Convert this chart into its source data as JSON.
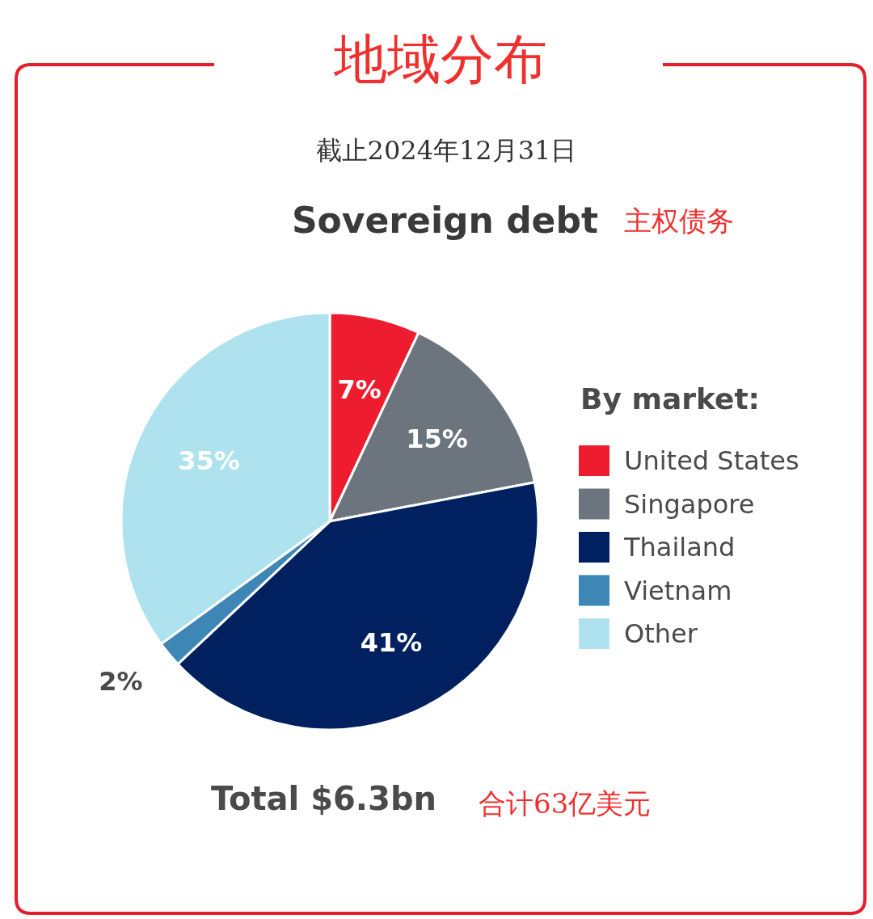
{
  "chart_data": {
    "type": "pie",
    "title": "地域分布",
    "subtitle": "截止2024年12月31日",
    "annotations": [
      "Sovereign debt",
      "主权债务",
      "Total $6.3bn",
      "合计63亿美元"
    ],
    "legend_title": "By market:",
    "categories": [
      "United States",
      "Singapore",
      "Thailand",
      "Vietnam",
      "Other"
    ],
    "values": [
      7,
      15,
      41,
      2,
      35
    ],
    "colors": [
      "#ed1c2e",
      "#6c757d",
      "#002060",
      "#3e86b5",
      "#ade2ee"
    ],
    "value_labels": [
      "7%",
      "15%",
      "41%",
      "2%",
      "35%"
    ],
    "legend": "right"
  }
}
